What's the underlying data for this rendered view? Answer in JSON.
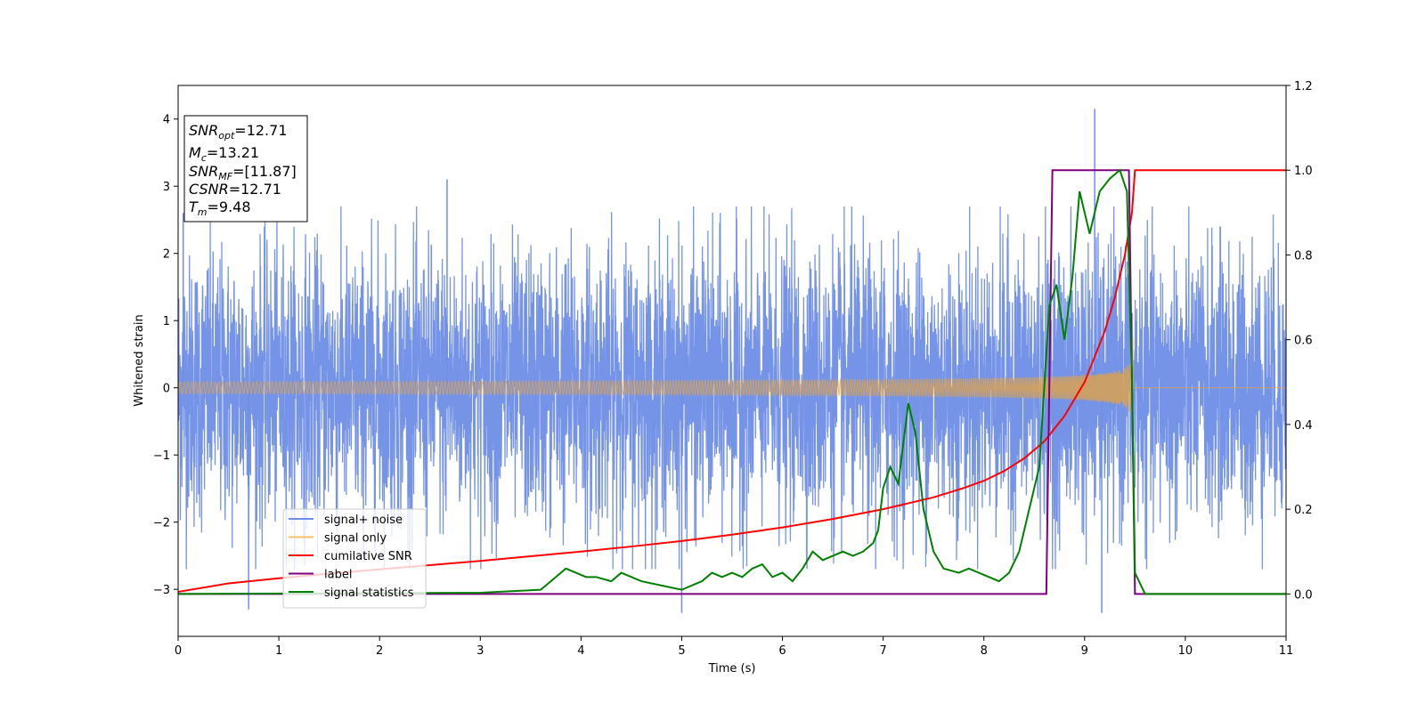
{
  "chart_data": {
    "type": "line",
    "xlabel": "Time (s)",
    "ylabel": "Whitened strain",
    "xlim": [
      0,
      11
    ],
    "ylim_left": [
      -3.7,
      4.5
    ],
    "ylim_right": [
      -0.1,
      1.2
    ],
    "x_ticks": [
      "0",
      "1",
      "2",
      "3",
      "4",
      "5",
      "6",
      "7",
      "8",
      "9",
      "10",
      "11"
    ],
    "y_ticks_left": [
      "−3",
      "−2",
      "−1",
      "0",
      "1",
      "2",
      "3",
      "4"
    ],
    "y_ticks_right": [
      "0.0",
      "0.2",
      "0.4",
      "0.6",
      "0.8",
      "1.0",
      "1.2"
    ],
    "info_box": {
      "snr_opt": {
        "label": "SNR",
        "sub": "opt",
        "value": "=12.71"
      },
      "mc": {
        "label": "M",
        "sub": "c",
        "value": "=13.21"
      },
      "snr_mf": {
        "label": "SNR",
        "sub": "MF",
        "value": "=[11.87]"
      },
      "csnr": {
        "label": "CSNR",
        "value": "=12.71"
      },
      "tm": {
        "label": "T",
        "sub": "m",
        "value": "=9.48"
      }
    },
    "legend": {
      "placement": "lower-left",
      "entries": [
        {
          "name": "signal+ noise",
          "color": "#6f8ee6"
        },
        {
          "name": "signal only",
          "color": "#f5c26b"
        },
        {
          "name": "cumilative SNR",
          "color": "#ff0000"
        },
        {
          "name": "label",
          "color": "#800080"
        },
        {
          "name": "signal statistics",
          "color": "#008000"
        }
      ]
    },
    "series": [
      {
        "name": "signal+ noise",
        "axis": "left",
        "kind": "noise",
        "sigma": 1.0,
        "color": "#6f8ee6",
        "spikes": [
          [
            0.05,
            2.6
          ],
          [
            0.7,
            -3.3
          ],
          [
            2.67,
            3.1
          ],
          [
            5.0,
            -3.35
          ],
          [
            9.1,
            4.15
          ],
          [
            9.17,
            -3.35
          ]
        ]
      },
      {
        "name": "signal only",
        "axis": "left",
        "kind": "chirp",
        "t_merge": 9.48,
        "amp_final": 1.2,
        "color": "#e8a33d"
      },
      {
        "name": "cumilative SNR",
        "axis": "right",
        "color": "#ff0000",
        "x": [
          0,
          0.5,
          1,
          1.5,
          2,
          2.5,
          3,
          3.5,
          4,
          4.5,
          5,
          5.5,
          6,
          6.5,
          7,
          7.5,
          7.8,
          8,
          8.2,
          8.4,
          8.6,
          8.8,
          9.0,
          9.2,
          9.3,
          9.4,
          9.47,
          9.5,
          11
        ],
        "y": [
          0.005,
          0.025,
          0.037,
          0.048,
          0.058,
          0.068,
          0.078,
          0.089,
          0.1,
          0.112,
          0.125,
          0.14,
          0.157,
          0.177,
          0.2,
          0.228,
          0.25,
          0.267,
          0.29,
          0.32,
          0.36,
          0.42,
          0.5,
          0.62,
          0.7,
          0.8,
          0.9,
          1.0,
          1.0
        ]
      },
      {
        "name": "label",
        "axis": "right",
        "color": "#800080",
        "x": [
          0,
          8.62,
          8.68,
          9.44,
          9.5,
          11
        ],
        "y": [
          0,
          0,
          1,
          1,
          0,
          0
        ]
      },
      {
        "name": "signal statistics",
        "axis": "right",
        "color": "#008000",
        "x": [
          0,
          3.0,
          3.6,
          3.75,
          3.85,
          3.95,
          4.05,
          4.15,
          4.3,
          4.4,
          4.5,
          4.6,
          4.8,
          5.0,
          5.2,
          5.3,
          5.4,
          5.5,
          5.6,
          5.7,
          5.8,
          5.9,
          6.0,
          6.1,
          6.2,
          6.3,
          6.4,
          6.5,
          6.6,
          6.7,
          6.8,
          6.9,
          6.95,
          7.0,
          7.07,
          7.15,
          7.25,
          7.32,
          7.4,
          7.5,
          7.6,
          7.75,
          7.85,
          7.95,
          8.05,
          8.15,
          8.25,
          8.35,
          8.45,
          8.55,
          8.65,
          8.72,
          8.8,
          8.88,
          8.95,
          9.05,
          9.15,
          9.25,
          9.35,
          9.42,
          9.47,
          9.5,
          9.6,
          11
        ],
        "y": [
          0,
          0.003,
          0.01,
          0.04,
          0.06,
          0.05,
          0.04,
          0.04,
          0.03,
          0.05,
          0.04,
          0.03,
          0.02,
          0.01,
          0.03,
          0.05,
          0.04,
          0.05,
          0.04,
          0.06,
          0.07,
          0.04,
          0.05,
          0.03,
          0.06,
          0.1,
          0.08,
          0.09,
          0.1,
          0.09,
          0.1,
          0.12,
          0.15,
          0.25,
          0.3,
          0.26,
          0.45,
          0.38,
          0.2,
          0.1,
          0.06,
          0.05,
          0.06,
          0.05,
          0.04,
          0.03,
          0.05,
          0.1,
          0.2,
          0.3,
          0.68,
          0.73,
          0.6,
          0.75,
          0.95,
          0.85,
          0.95,
          0.98,
          1.0,
          0.95,
          0.5,
          0.05,
          0.0,
          0.0
        ]
      }
    ]
  }
}
